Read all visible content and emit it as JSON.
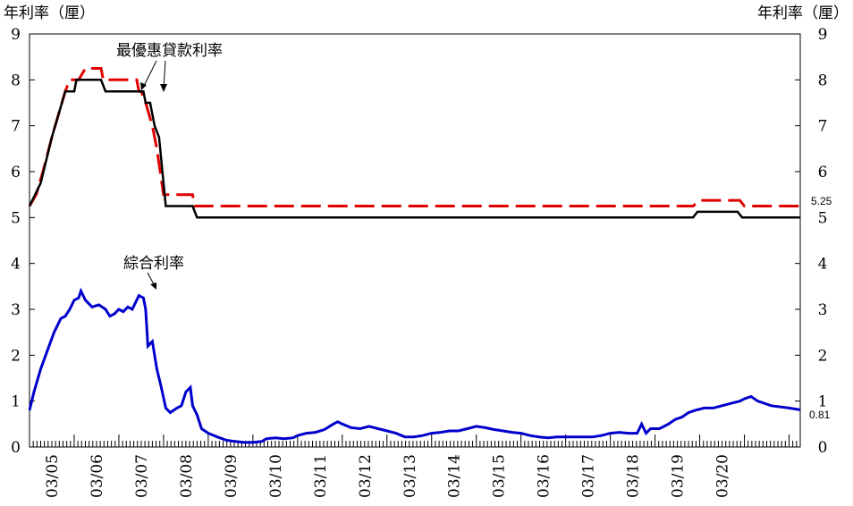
{
  "chart_data": {
    "type": "line",
    "left_axis_title": "年利率（厘）",
    "right_axis_title": "年利率（厘）",
    "ylim": [
      0,
      9
    ],
    "y_ticks": [
      0,
      1,
      2,
      3,
      4,
      5,
      6,
      7,
      8,
      9
    ],
    "x_range": [
      2003.0,
      2020.25
    ],
    "x_ticks": [
      "03/05",
      "03/06",
      "03/07",
      "03/08",
      "03/09",
      "03/10",
      "03/11",
      "03/12",
      "03/13",
      "03/14",
      "03/15",
      "03/16",
      "03/17",
      "03/18",
      "03/19",
      "03/20"
    ],
    "grid": false,
    "annotations": {
      "best_lending_rate": "最優惠貸款利率",
      "composite_rate": "綜合利率",
      "end_value_best_upper": "5.25",
      "end_value_composite": "0.81"
    },
    "series": [
      {
        "key": "upper",
        "color": "#e00000",
        "dash": "dashed",
        "points": [
          [
            2003.0,
            5.25
          ],
          [
            2003.15,
            5.5
          ],
          [
            2003.3,
            6.0
          ],
          [
            2003.5,
            6.75
          ],
          [
            2003.65,
            7.25
          ],
          [
            2003.8,
            7.75
          ],
          [
            2003.9,
            8.0
          ],
          [
            2004.1,
            8.0
          ],
          [
            2004.25,
            8.25
          ],
          [
            2004.6,
            8.25
          ],
          [
            2004.65,
            8.0
          ],
          [
            2005.4,
            8.0
          ],
          [
            2005.45,
            7.75
          ],
          [
            2005.5,
            7.75
          ],
          [
            2005.6,
            7.5
          ],
          [
            2005.75,
            7.0
          ],
          [
            2005.85,
            6.5
          ],
          [
            2006.0,
            5.5
          ],
          [
            2006.65,
            5.5
          ],
          [
            2006.7,
            5.25
          ],
          [
            2007.75,
            5.25
          ],
          [
            2017.85,
            5.25
          ],
          [
            2018.0,
            5.375
          ],
          [
            2018.9,
            5.375
          ],
          [
            2019.0,
            5.25
          ],
          [
            2020.25,
            5.25
          ]
        ]
      },
      {
        "key": "lower",
        "color": "#000000",
        "dash": "solid",
        "points": [
          [
            2003.0,
            5.25
          ],
          [
            2003.25,
            5.75
          ],
          [
            2003.5,
            6.75
          ],
          [
            2003.65,
            7.25
          ],
          [
            2003.8,
            7.75
          ],
          [
            2004.0,
            7.75
          ],
          [
            2004.05,
            8.0
          ],
          [
            2004.6,
            8.0
          ],
          [
            2004.7,
            7.75
          ],
          [
            2005.55,
            7.75
          ],
          [
            2005.6,
            7.5
          ],
          [
            2005.7,
            7.5
          ],
          [
            2005.8,
            7.0
          ],
          [
            2005.9,
            6.75
          ],
          [
            2005.95,
            6.25
          ],
          [
            2006.0,
            5.75
          ],
          [
            2006.05,
            5.25
          ],
          [
            2006.65,
            5.25
          ],
          [
            2006.75,
            5.0
          ],
          [
            2017.85,
            5.0
          ],
          [
            2017.95,
            5.125
          ],
          [
            2018.85,
            5.125
          ],
          [
            2018.95,
            5.0
          ],
          [
            2020.25,
            5.0
          ]
        ]
      },
      {
        "key": "composite",
        "color": "#0000cc",
        "dash": "solid",
        "points": [
          [
            2003.0,
            0.8
          ],
          [
            2003.1,
            1.2
          ],
          [
            2003.25,
            1.7
          ],
          [
            2003.4,
            2.1
          ],
          [
            2003.55,
            2.5
          ],
          [
            2003.7,
            2.8
          ],
          [
            2003.8,
            2.85
          ],
          [
            2003.9,
            3.0
          ],
          [
            2004.0,
            3.2
          ],
          [
            2004.1,
            3.25
          ],
          [
            2004.15,
            3.4
          ],
          [
            2004.25,
            3.2
          ],
          [
            2004.4,
            3.05
          ],
          [
            2004.55,
            3.1
          ],
          [
            2004.7,
            3.0
          ],
          [
            2004.8,
            2.85
          ],
          [
            2004.9,
            2.9
          ],
          [
            2005.0,
            3.0
          ],
          [
            2005.1,
            2.95
          ],
          [
            2005.2,
            3.05
          ],
          [
            2005.3,
            3.0
          ],
          [
            2005.4,
            3.2
          ],
          [
            2005.45,
            3.3
          ],
          [
            2005.55,
            3.25
          ],
          [
            2005.6,
            3.0
          ],
          [
            2005.65,
            2.2
          ],
          [
            2005.75,
            2.3
          ],
          [
            2005.85,
            1.7
          ],
          [
            2005.95,
            1.3
          ],
          [
            2006.05,
            0.85
          ],
          [
            2006.15,
            0.75
          ],
          [
            2006.3,
            0.85
          ],
          [
            2006.4,
            0.9
          ],
          [
            2006.5,
            1.2
          ],
          [
            2006.6,
            1.3
          ],
          [
            2006.65,
            0.9
          ],
          [
            2006.75,
            0.7
          ],
          [
            2006.85,
            0.4
          ],
          [
            2007.0,
            0.3
          ],
          [
            2007.2,
            0.22
          ],
          [
            2007.4,
            0.15
          ],
          [
            2007.6,
            0.12
          ],
          [
            2007.8,
            0.1
          ],
          [
            2008.0,
            0.1
          ],
          [
            2008.2,
            0.12
          ],
          [
            2008.3,
            0.18
          ],
          [
            2008.5,
            0.2
          ],
          [
            2008.7,
            0.18
          ],
          [
            2008.9,
            0.2
          ],
          [
            2009.0,
            0.25
          ],
          [
            2009.2,
            0.3
          ],
          [
            2009.4,
            0.32
          ],
          [
            2009.6,
            0.38
          ],
          [
            2009.8,
            0.5
          ],
          [
            2009.9,
            0.55
          ],
          [
            2010.0,
            0.5
          ],
          [
            2010.2,
            0.42
          ],
          [
            2010.4,
            0.4
          ],
          [
            2010.6,
            0.45
          ],
          [
            2010.8,
            0.4
          ],
          [
            2011.0,
            0.35
          ],
          [
            2011.2,
            0.3
          ],
          [
            2011.4,
            0.22
          ],
          [
            2011.6,
            0.22
          ],
          [
            2011.8,
            0.25
          ],
          [
            2012.0,
            0.3
          ],
          [
            2012.2,
            0.32
          ],
          [
            2012.4,
            0.35
          ],
          [
            2012.6,
            0.35
          ],
          [
            2012.8,
            0.4
          ],
          [
            2013.0,
            0.45
          ],
          [
            2013.2,
            0.42
          ],
          [
            2013.4,
            0.38
          ],
          [
            2013.6,
            0.35
          ],
          [
            2013.8,
            0.32
          ],
          [
            2014.0,
            0.3
          ],
          [
            2014.2,
            0.25
          ],
          [
            2014.4,
            0.22
          ],
          [
            2014.6,
            0.2
          ],
          [
            2014.8,
            0.22
          ],
          [
            2015.0,
            0.22
          ],
          [
            2015.2,
            0.22
          ],
          [
            2015.4,
            0.22
          ],
          [
            2015.6,
            0.22
          ],
          [
            2015.8,
            0.25
          ],
          [
            2016.0,
            0.3
          ],
          [
            2016.2,
            0.32
          ],
          [
            2016.4,
            0.3
          ],
          [
            2016.6,
            0.3
          ],
          [
            2016.7,
            0.5
          ],
          [
            2016.8,
            0.3
          ],
          [
            2016.9,
            0.4
          ],
          [
            2017.1,
            0.4
          ],
          [
            2017.3,
            0.5
          ],
          [
            2017.45,
            0.6
          ],
          [
            2017.6,
            0.65
          ],
          [
            2017.75,
            0.75
          ],
          [
            2017.9,
            0.8
          ],
          [
            2018.1,
            0.85
          ],
          [
            2018.3,
            0.85
          ],
          [
            2018.5,
            0.9
          ],
          [
            2018.7,
            0.95
          ],
          [
            2018.9,
            1.0
          ],
          [
            2019.0,
            1.05
          ],
          [
            2019.15,
            1.1
          ],
          [
            2019.3,
            1.0
          ],
          [
            2019.45,
            0.95
          ],
          [
            2019.6,
            0.9
          ],
          [
            2020.0,
            0.85
          ],
          [
            2020.25,
            0.81
          ]
        ]
      }
    ]
  }
}
